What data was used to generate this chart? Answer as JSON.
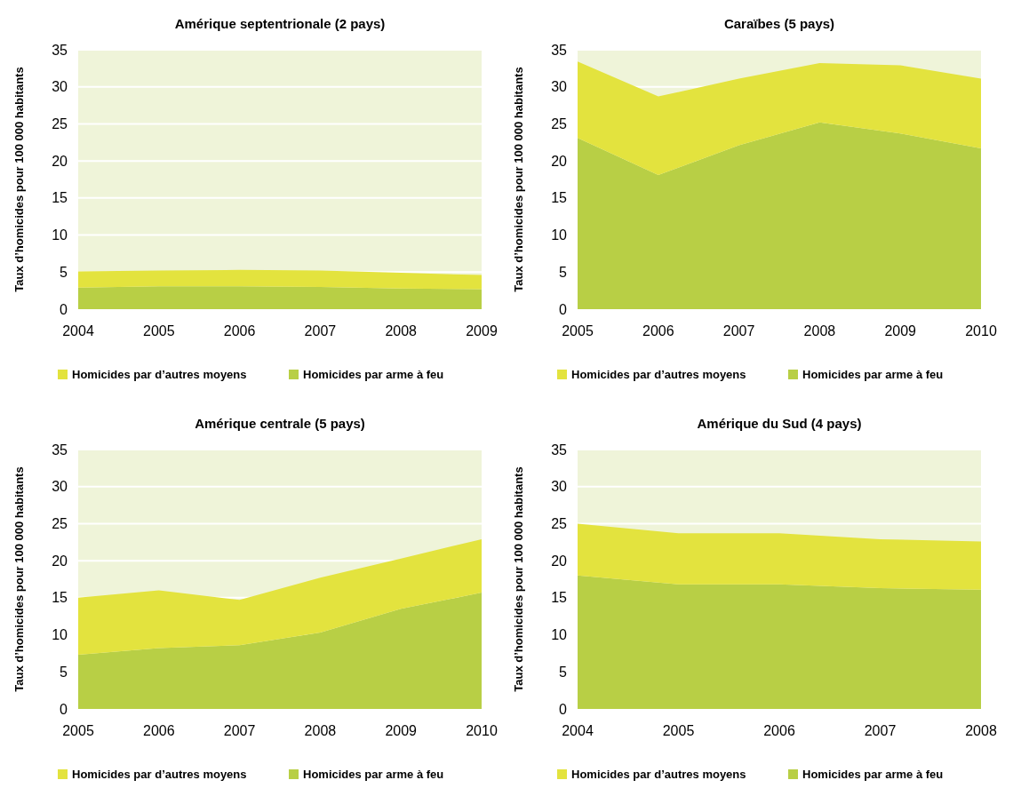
{
  "chart_data": [
    {
      "type": "area",
      "title": "Amérique septentrionale (2 pays)",
      "ylabel": "Taux d’homicides pour 100 000 habitants",
      "categories": [
        "2004",
        "2005",
        "2006",
        "2007",
        "2008",
        "2009"
      ],
      "stacked": true,
      "ylim": [
        0,
        35
      ],
      "yticks": [
        0,
        5,
        10,
        15,
        20,
        25,
        30,
        35
      ],
      "grid": "y",
      "legend": "bottom",
      "series": [
        {
          "name": "Homicides par arme à feu",
          "color": "#b8cf45",
          "values": [
            2.9,
            3.1,
            3.1,
            3.0,
            2.8,
            2.7
          ]
        },
        {
          "name": "Homicides par d’autres moyens",
          "color": "#e3e33e",
          "values": [
            2.2,
            2.1,
            2.2,
            2.2,
            2.1,
            1.9
          ]
        }
      ]
    },
    {
      "type": "area",
      "title": "Caraïbes (5 pays)",
      "ylabel": "Taux d’homicides pour 100 000 habitants",
      "categories": [
        "2005",
        "2006",
        "2007",
        "2008",
        "2009",
        "2010"
      ],
      "stacked": true,
      "ylim": [
        0,
        35
      ],
      "yticks": [
        0,
        5,
        10,
        15,
        20,
        25,
        30,
        35
      ],
      "grid": "y",
      "legend": "bottom",
      "series": [
        {
          "name": "Homicides par arme à feu",
          "color": "#b8cf45",
          "values": [
            23.1,
            18.1,
            22.1,
            25.2,
            23.7,
            21.7
          ]
        },
        {
          "name": "Homicides par d’autres moyens",
          "color": "#e3e33e",
          "values": [
            10.3,
            10.6,
            9.0,
            8.0,
            9.2,
            9.4
          ]
        }
      ]
    },
    {
      "type": "area",
      "title": "Amérique centrale (5 pays)",
      "ylabel": "Taux d’homicides pour 100 000 habitants",
      "categories": [
        "2005",
        "2006",
        "2007",
        "2008",
        "2009",
        "2010"
      ],
      "stacked": true,
      "ylim": [
        0,
        35
      ],
      "yticks": [
        0,
        5,
        10,
        15,
        20,
        25,
        30,
        35
      ],
      "grid": "y",
      "legend": "bottom",
      "series": [
        {
          "name": "Homicides par arme à feu",
          "color": "#b8cf45",
          "values": [
            7.3,
            8.2,
            8.6,
            10.3,
            13.5,
            15.7
          ]
        },
        {
          "name": "Homicides par d’autres moyens",
          "color": "#e3e33e",
          "values": [
            7.7,
            7.8,
            6.1,
            7.4,
            6.8,
            7.2
          ]
        }
      ]
    },
    {
      "type": "area",
      "title": "Amérique du Sud (4 pays)",
      "ylabel": "Taux d’homicides pour 100 000 habitants",
      "categories": [
        "2004",
        "2005",
        "2006",
        "2007",
        "2008"
      ],
      "stacked": true,
      "ylim": [
        0,
        35
      ],
      "yticks": [
        0,
        5,
        10,
        15,
        20,
        25,
        30,
        35
      ],
      "grid": "y",
      "legend": "bottom",
      "series": [
        {
          "name": "Homicides par arme à feu",
          "color": "#b8cf45",
          "values": [
            18.0,
            16.8,
            16.8,
            16.3,
            16.1
          ]
        },
        {
          "name": "Homicides par d’autres moyens",
          "color": "#e3e33e",
          "values": [
            7.0,
            6.9,
            6.9,
            6.6,
            6.5
          ]
        }
      ]
    }
  ]
}
